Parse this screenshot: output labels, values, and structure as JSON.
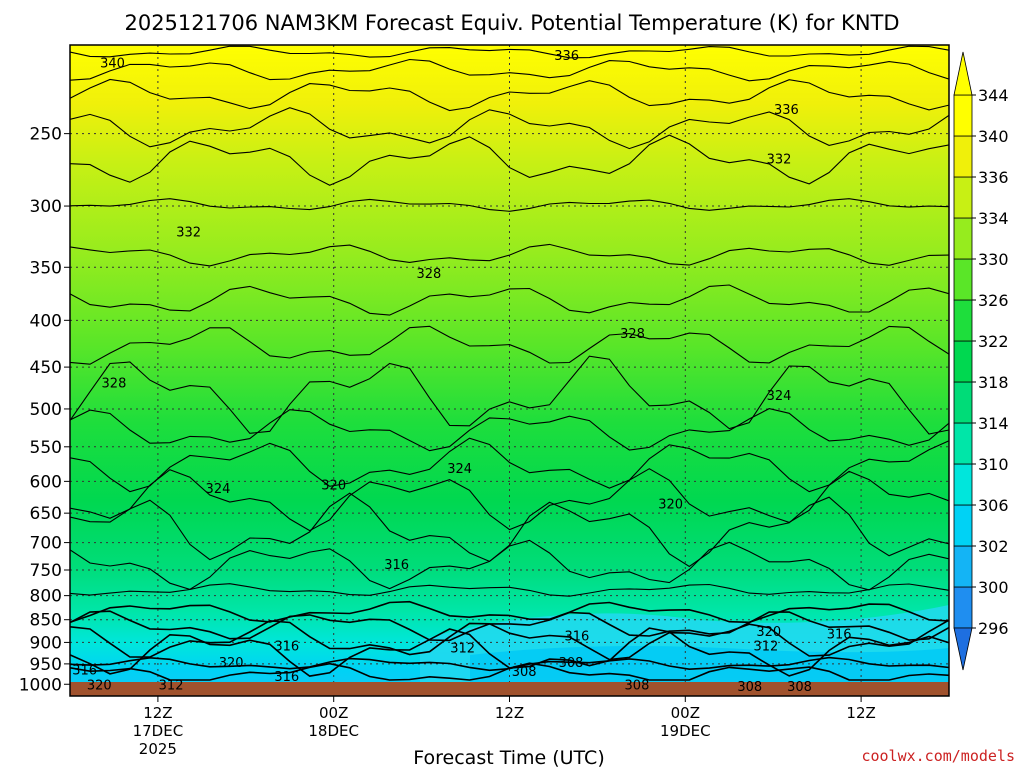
{
  "title": "2025121706 NAM3KM Forecast Equiv. Potential Temperature (K) for KNTD",
  "watermark": "coolwx.com/models",
  "chart_data": {
    "type": "heatmap",
    "title": "2025121706 NAM3KM Forecast Equiv. Potential Temperature (K) for KNTD",
    "xlabel": "Forecast Time (UTC)",
    "ylabel": "",
    "y_axis": {
      "scale": "log",
      "reversed": true,
      "range": [
        200,
        1030
      ],
      "ticks": [
        250,
        300,
        350,
        400,
        450,
        500,
        550,
        600,
        650,
        700,
        750,
        800,
        850,
        900,
        950,
        1000
      ]
    },
    "x_axis": {
      "range_hours": [
        0,
        60
      ],
      "ticks": [
        {
          "hour": 6,
          "lines": [
            "12Z",
            "17DEC",
            "2025"
          ]
        },
        {
          "hour": 18,
          "lines": [
            "00Z",
            "18DEC"
          ]
        },
        {
          "hour": 30,
          "lines": [
            "12Z"
          ]
        },
        {
          "hour": 42,
          "lines": [
            "00Z",
            "19DEC"
          ]
        },
        {
          "hour": 54,
          "lines": [
            "12Z"
          ]
        }
      ]
    },
    "grid": true,
    "colorbar": {
      "levels": [
        296,
        300,
        302,
        306,
        310,
        314,
        318,
        322,
        326,
        330,
        334,
        336,
        340,
        344
      ],
      "colors": [
        "#1e6fe0",
        "#1f8ef0",
        "#14b4f5",
        "#00d2f5",
        "#00e6dc",
        "#00e6a8",
        "#00dc78",
        "#00d850",
        "#1ede3c",
        "#5ae628",
        "#96ec1e",
        "#c8f014",
        "#f0f00a",
        "#ffff00"
      ],
      "placement": "right"
    },
    "surface_color": "#a0522d",
    "contour_labels": [
      {
        "text": "340",
        "t": 2.9,
        "p": 209
      },
      {
        "text": "336",
        "t": 33.9,
        "p": 205
      },
      {
        "text": "336",
        "t": 48.9,
        "p": 235
      },
      {
        "text": "332",
        "t": 48.4,
        "p": 266
      },
      {
        "text": "332",
        "t": 8.1,
        "p": 320
      },
      {
        "text": "328",
        "t": 24.5,
        "p": 355
      },
      {
        "text": "328",
        "t": 38.4,
        "p": 413
      },
      {
        "text": "328",
        "t": 3.0,
        "p": 468
      },
      {
        "text": "324",
        "t": 48.4,
        "p": 483
      },
      {
        "text": "324",
        "t": 26.6,
        "p": 580
      },
      {
        "text": "324",
        "t": 10.1,
        "p": 610
      },
      {
        "text": "320",
        "t": 18.0,
        "p": 605
      },
      {
        "text": "320",
        "t": 41.0,
        "p": 634
      },
      {
        "text": "316",
        "t": 22.3,
        "p": 739
      },
      {
        "text": "316",
        "t": 34.6,
        "p": 885
      },
      {
        "text": "320",
        "t": 47.7,
        "p": 875
      },
      {
        "text": "316",
        "t": 52.5,
        "p": 880
      },
      {
        "text": "316",
        "t": 14.8,
        "p": 907
      },
      {
        "text": "312",
        "t": 26.8,
        "p": 912
      },
      {
        "text": "312",
        "t": 47.5,
        "p": 907
      },
      {
        "text": "320",
        "t": 11.0,
        "p": 945
      },
      {
        "text": "316",
        "t": 1.0,
        "p": 963
      },
      {
        "text": "308",
        "t": 34.2,
        "p": 945
      },
      {
        "text": "308",
        "t": 31.0,
        "p": 967
      },
      {
        "text": "316",
        "t": 14.8,
        "p": 980
      },
      {
        "text": "320",
        "t": 2.0,
        "p": 1000
      },
      {
        "text": "312",
        "t": 6.9,
        "p": 1000
      },
      {
        "text": "308",
        "t": 38.7,
        "p": 1000
      },
      {
        "text": "308",
        "t": 46.4,
        "p": 1005
      },
      {
        "text": "308",
        "t": 49.8,
        "p": 1005
      }
    ]
  }
}
